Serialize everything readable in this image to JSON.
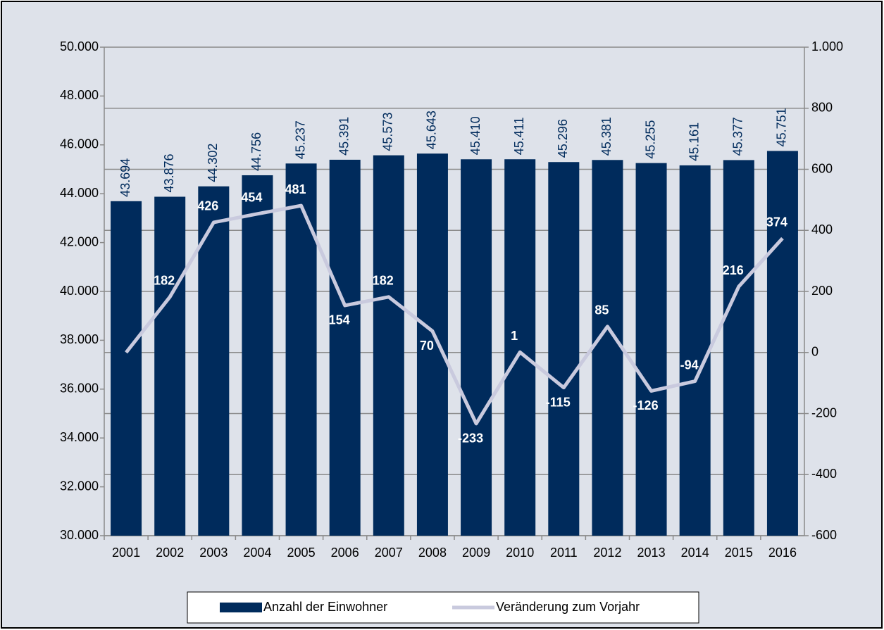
{
  "chart_data": {
    "type": "bar_line",
    "categories": [
      "2001",
      "2002",
      "2003",
      "2004",
      "2005",
      "2006",
      "2007",
      "2008",
      "2009",
      "2010",
      "2011",
      "2012",
      "2013",
      "2014",
      "2015",
      "2016"
    ],
    "series": [
      {
        "name": "Anzahl der Einwohner",
        "type": "bar",
        "color": "#002b5c",
        "values": [
          43694,
          43876,
          44302,
          44756,
          45237,
          45391,
          45573,
          45643,
          45410,
          45411,
          45296,
          45381,
          45255,
          45161,
          45377,
          45751
        ],
        "value_labels": [
          "43.694",
          "43.876",
          "44.302",
          "44.756",
          "45.237",
          "45.391",
          "45.573",
          "45.643",
          "45.410",
          "45.411",
          "45.296",
          "45.381",
          "45.255",
          "45.161",
          "45.377",
          "45.751"
        ]
      },
      {
        "name": "Veränderung zum Vorjahr",
        "type": "line",
        "axis": "y2",
        "color": "#c9cade",
        "values": [
          0,
          182,
          426,
          454,
          481,
          154,
          182,
          70,
          -233,
          1,
          -115,
          85,
          -126,
          -94,
          216,
          374
        ],
        "value_labels": [
          null,
          "182",
          "426",
          "454",
          "481",
          "154",
          "182",
          "70",
          "-233",
          "1",
          "-115",
          "85",
          "-126",
          "-94",
          "216",
          "374"
        ]
      }
    ],
    "ylim": [
      30000,
      50000
    ],
    "yticks": [
      {
        "value": 30000,
        "label": "30.000"
      },
      {
        "value": 32000,
        "label": "32.000"
      },
      {
        "value": 34000,
        "label": "34.000"
      },
      {
        "value": 36000,
        "label": "36.000"
      },
      {
        "value": 38000,
        "label": "38.000"
      },
      {
        "value": 40000,
        "label": "40.000"
      },
      {
        "value": 42000,
        "label": "42.000"
      },
      {
        "value": 44000,
        "label": "44.000"
      },
      {
        "value": 46000,
        "label": "46.000"
      },
      {
        "value": 48000,
        "label": "48.000"
      },
      {
        "value": 50000,
        "label": "50.000"
      }
    ],
    "y2lim": [
      -600,
      1000
    ],
    "y2ticks": [
      -600,
      -400,
      -200,
      0,
      200,
      400,
      600,
      800,
      {
        "value": 1000,
        "label": "1.000"
      }
    ],
    "grid": "y2",
    "legend": "bottom"
  }
}
